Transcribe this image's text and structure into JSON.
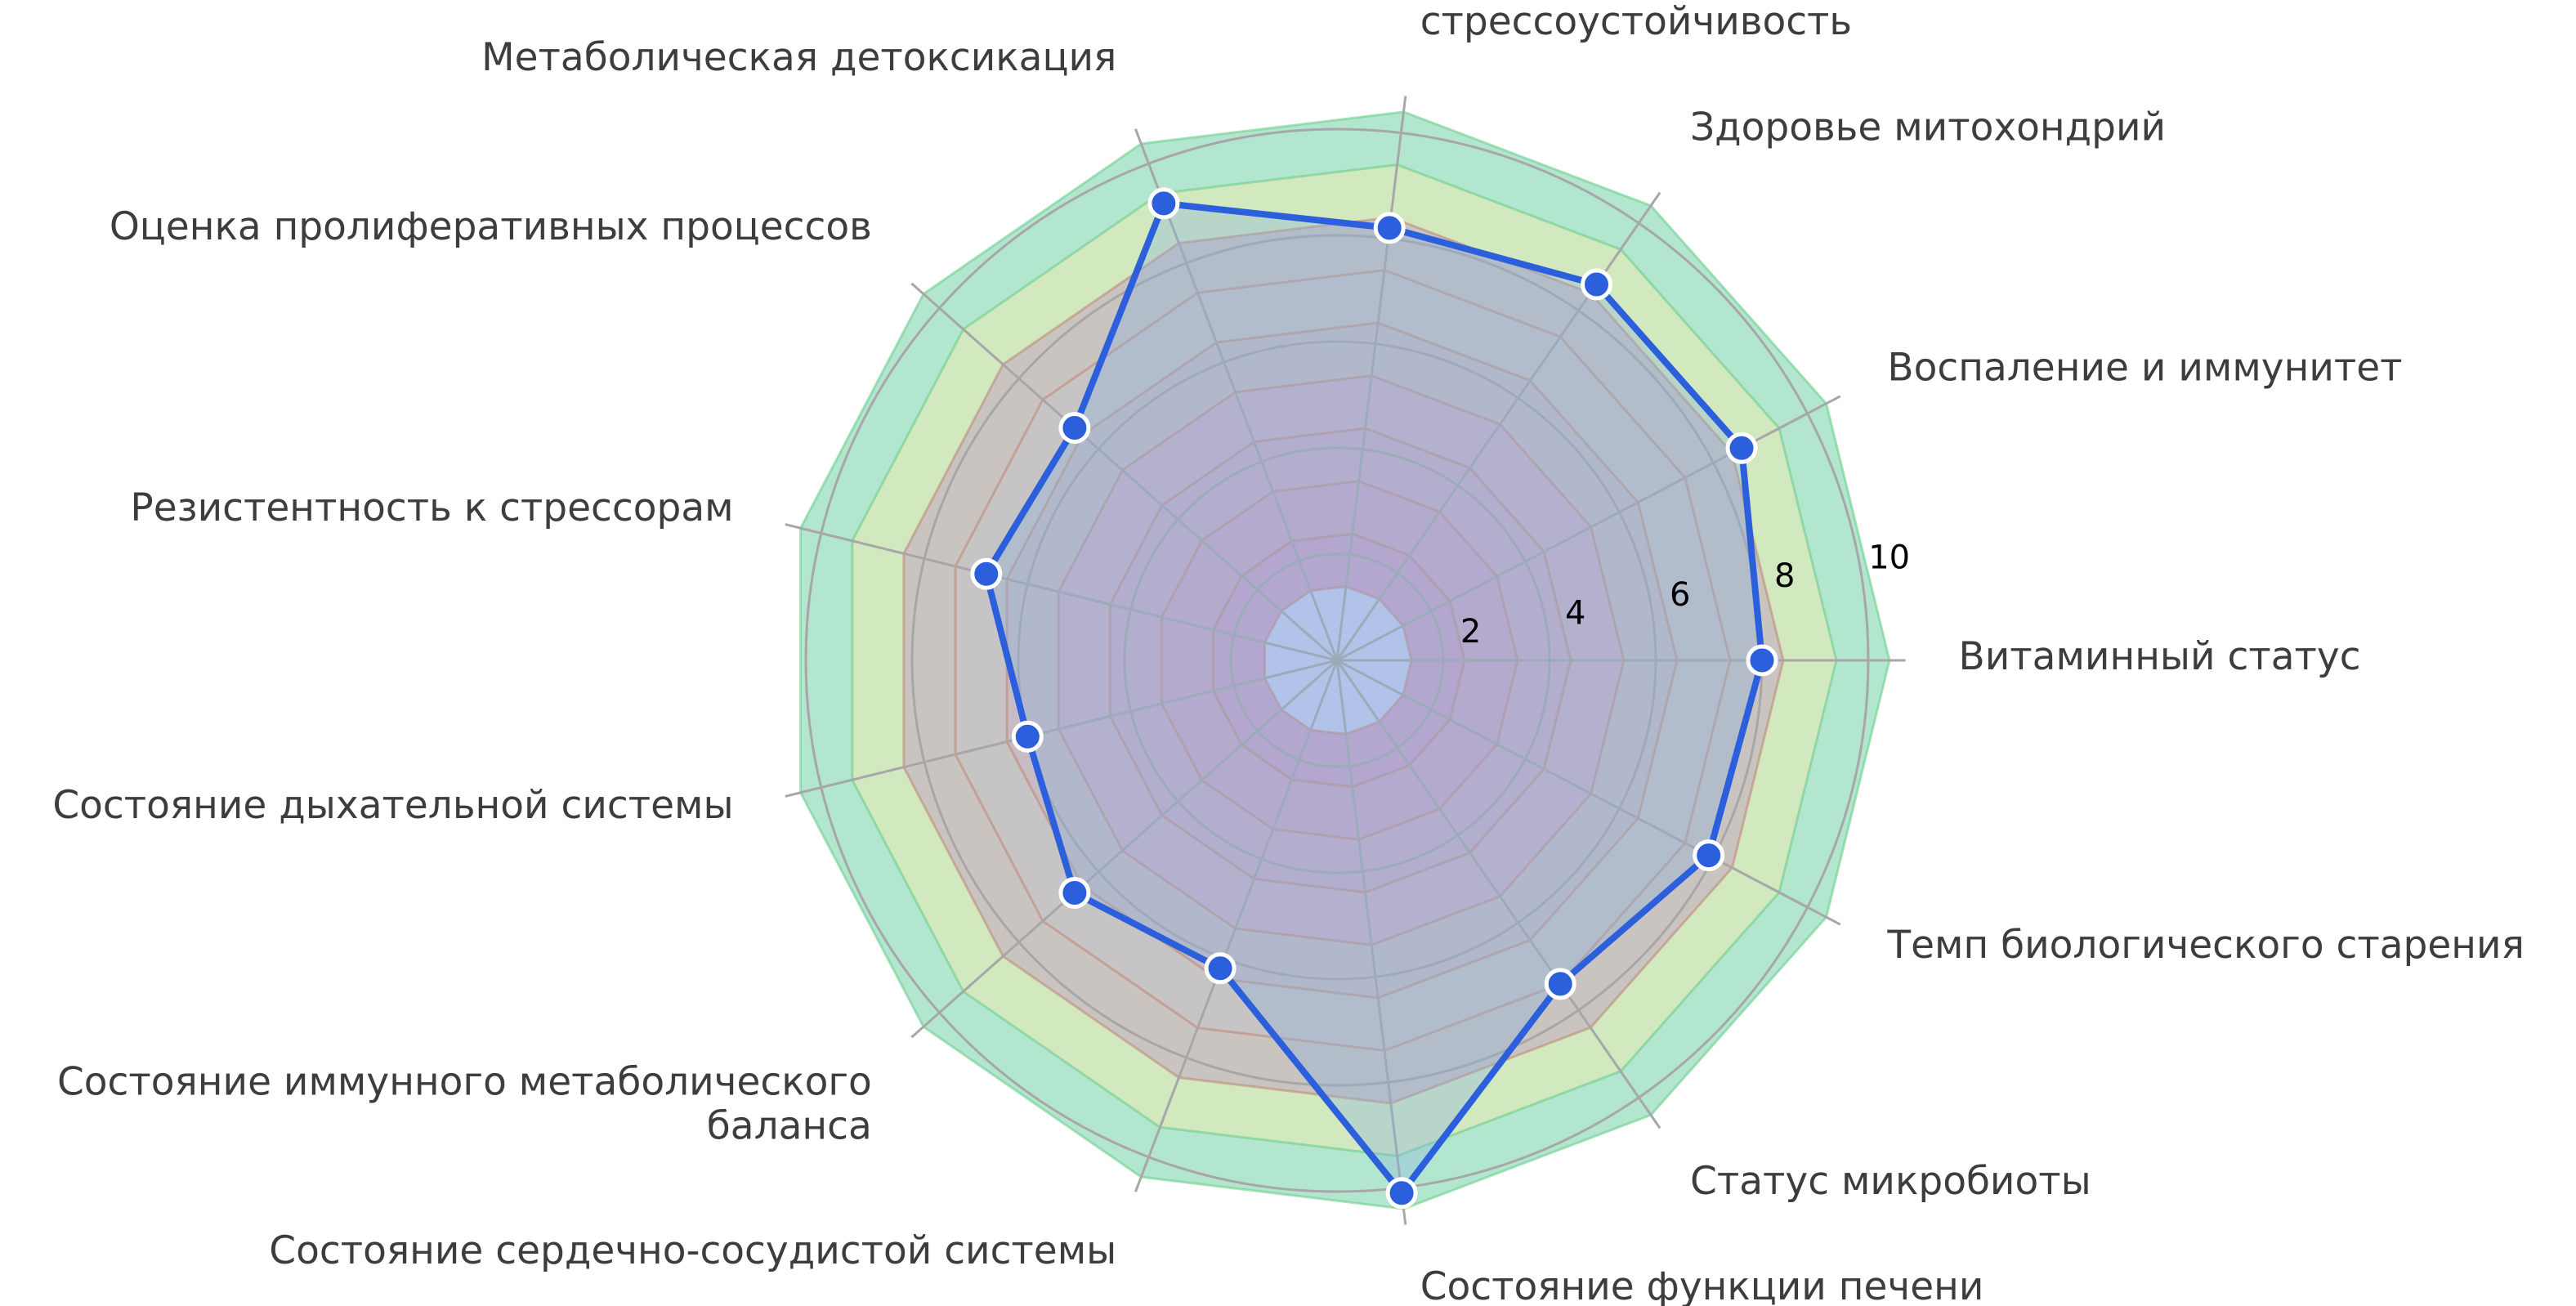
{
  "chart_data": {
    "type": "radar",
    "title": "",
    "categories": [
      "Витаминный статус",
      "Воспаление и иммунитет",
      "Здоровье митохондрий",
      "Метаболическая адаптация и стрессоустойчивость",
      "Метаболическая детоксикация",
      "Оценка пролиферативных процессов",
      "Резистентность к стрессорам",
      "Состояние дыхательной системы",
      "Состояние иммунного метаболического баланса",
      "Состояние сердечно-сосудистой системы",
      "Состояние функции печени",
      "Статус микробиоты",
      "Темп биологического старения"
    ],
    "values": [
      8.0,
      8.6,
      8.6,
      8.2,
      9.2,
      6.6,
      6.8,
      6.0,
      6.6,
      6.2,
      10.1,
      7.4,
      7.9
    ],
    "rlim": [
      0,
      10
    ],
    "rticks": [
      2,
      4,
      6,
      8,
      10
    ],
    "rtick_labels": [
      "2",
      "4",
      "6",
      "8",
      "10"
    ],
    "background_bands": [
      {
        "from": 0,
        "to": 1,
        "color": "#c8cdf2"
      },
      {
        "from": 1,
        "to": 2,
        "color": "#c9a2c9"
      },
      {
        "from": 2,
        "to": 3,
        "color": "#c9a7c7"
      },
      {
        "from": 3,
        "to": 4,
        "color": "#c9acc6"
      },
      {
        "from": 4,
        "to": 5,
        "color": "#c9b1c6"
      },
      {
        "from": 5,
        "to": 6,
        "color": "#c7bcc4"
      },
      {
        "from": 6,
        "to": 7,
        "color": "#c6c4c4"
      },
      {
        "from": 7,
        "to": 8,
        "color": "#c9c4c0"
      },
      {
        "from": 8,
        "to": 9,
        "color": "#d2e8bf"
      },
      {
        "from": 9,
        "to": 10,
        "color": "#b3e6cf"
      }
    ],
    "series_color": "#2b5fdc",
    "fill_color": "#8ab2dd",
    "grid": true
  }
}
